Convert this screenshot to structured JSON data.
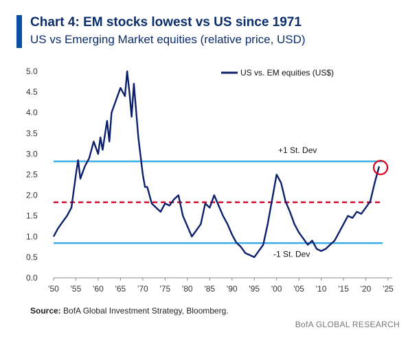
{
  "header": {
    "title": "Chart 4: EM stocks lowest vs US since 1971",
    "subtitle": "US vs Emerging Market equities (relative price, USD)"
  },
  "footer": {
    "source_label": "Source:",
    "source_text": "BofA Global Investment Strategy, Bloomberg.",
    "brand": "BofA GLOBAL RESEARCH"
  },
  "colors": {
    "accent": "#0a4fa3",
    "series": "#0b1f6b",
    "band": "#3aaee8",
    "mean": "#c8102e",
    "highlight": "#d6001c"
  },
  "chart_data": {
    "type": "line",
    "title": "US vs Emerging Market equities (relative price, USD)",
    "xlabel": "",
    "ylabel": "",
    "xlim": [
      1950,
      2025
    ],
    "ylim": [
      0,
      5
    ],
    "x_ticks": [
      "'50",
      "'55",
      "'60",
      "'65",
      "'70",
      "'75",
      "'80",
      "'85",
      "'90",
      "'95",
      "'00",
      "'05",
      "'10",
      "'15",
      "'20",
      "'25"
    ],
    "x_tick_values": [
      1950,
      1955,
      1960,
      1965,
      1970,
      1975,
      1980,
      1985,
      1990,
      1995,
      2000,
      2005,
      2010,
      2015,
      2020,
      2025
    ],
    "y_ticks": [
      "0.0",
      "0.5",
      "1.0",
      "1.5",
      "2.0",
      "2.5",
      "3.0",
      "3.5",
      "4.0",
      "4.5",
      "5.0"
    ],
    "y_tick_values": [
      0,
      0.5,
      1,
      1.5,
      2,
      2.5,
      3,
      3.5,
      4,
      4.5,
      5
    ],
    "grid": false,
    "legend_position": "top-center",
    "series": [
      {
        "name": "US vs. EM equities (US$)",
        "x": [
          1950,
          1951,
          1952,
          1953,
          1954,
          1955,
          1955.5,
          1956,
          1957,
          1958,
          1959,
          1960,
          1960.5,
          1961,
          1962,
          1962.5,
          1963,
          1964,
          1965,
          1966,
          1966.5,
          1967,
          1967.5,
          1968,
          1969,
          1970,
          1970.5,
          1971,
          1972,
          1973,
          1974,
          1975,
          1976,
          1977,
          1978,
          1979,
          1980,
          1981,
          1982,
          1983,
          1984,
          1985,
          1986,
          1987,
          1988,
          1989,
          1990,
          1991,
          1992,
          1993,
          1994,
          1995,
          1996,
          1997,
          1998,
          1999,
          2000,
          2001,
          2002,
          2003,
          2004,
          2005,
          2006,
          2007,
          2008,
          2009,
          2010,
          2011,
          2012,
          2013,
          2014,
          2015,
          2016,
          2017,
          2018,
          2019,
          2020,
          2021,
          2022,
          2023
        ],
        "values": [
          1.0,
          1.2,
          1.35,
          1.5,
          1.7,
          2.5,
          2.85,
          2.4,
          2.7,
          2.9,
          3.3,
          3.0,
          3.4,
          3.1,
          3.8,
          3.3,
          4.0,
          4.3,
          4.6,
          4.4,
          5.0,
          4.5,
          3.9,
          4.7,
          3.4,
          2.5,
          2.2,
          2.2,
          1.8,
          1.7,
          1.6,
          1.8,
          1.75,
          1.9,
          2.0,
          1.5,
          1.25,
          1.0,
          1.15,
          1.3,
          1.8,
          1.7,
          2.0,
          1.75,
          1.5,
          1.3,
          1.05,
          0.85,
          0.75,
          0.6,
          0.55,
          0.5,
          0.65,
          0.8,
          1.3,
          1.9,
          2.5,
          2.3,
          1.85,
          1.6,
          1.3,
          1.1,
          0.95,
          0.8,
          0.9,
          0.7,
          0.65,
          0.7,
          0.8,
          0.9,
          1.1,
          1.3,
          1.5,
          1.45,
          1.6,
          1.55,
          1.7,
          1.85,
          2.3,
          2.7
        ]
      }
    ],
    "reference_lines": [
      {
        "label": "+1 St. Dev",
        "value": 2.82,
        "style": "solid"
      },
      {
        "label": "",
        "value": 1.83,
        "style": "dashed"
      },
      {
        "label": "-1 St. Dev",
        "value": 0.84,
        "style": "solid"
      }
    ],
    "highlight": {
      "x": 2023,
      "y": 2.67
    }
  }
}
